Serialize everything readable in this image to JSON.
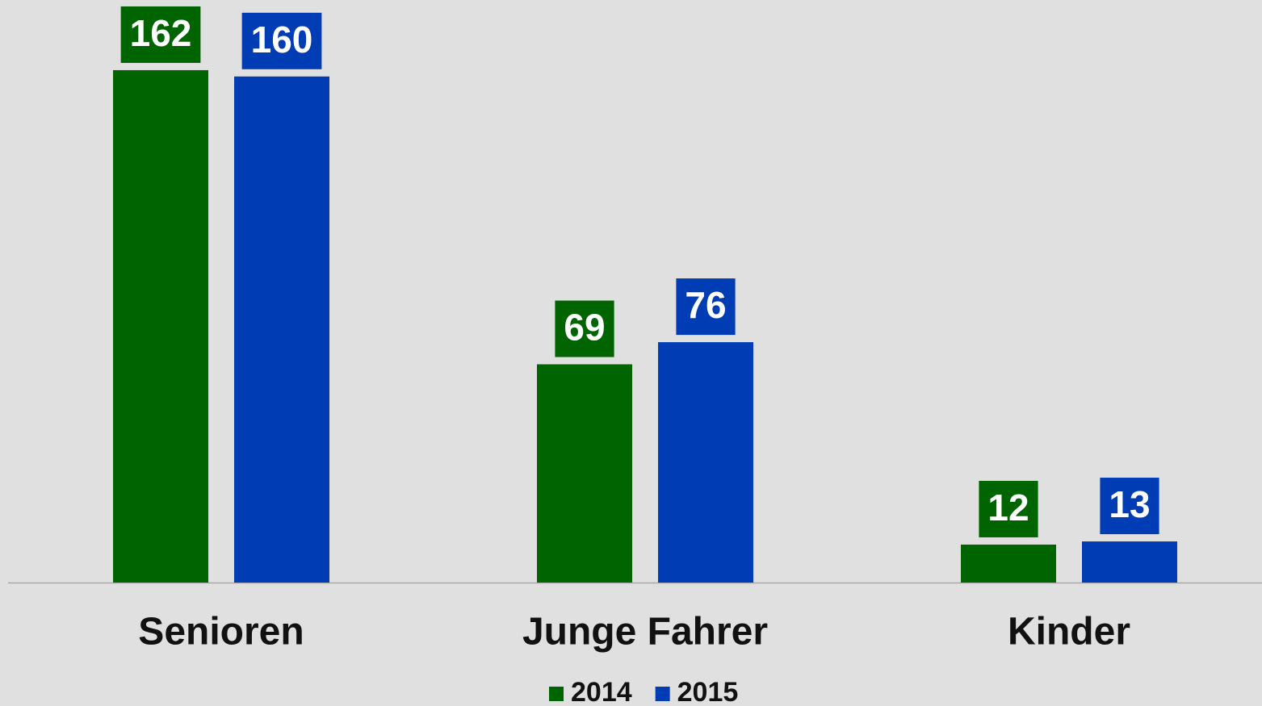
{
  "chart_data": {
    "type": "bar",
    "categories": [
      "Senioren",
      "Junge Fahrer",
      "Kinder"
    ],
    "series": [
      {
        "name": "2014",
        "color": "#006400",
        "values": [
          162,
          69,
          12
        ]
      },
      {
        "name": "2015",
        "color": "#003cb4",
        "values": [
          160,
          76,
          13
        ]
      }
    ],
    "legend": "bottom"
  }
}
